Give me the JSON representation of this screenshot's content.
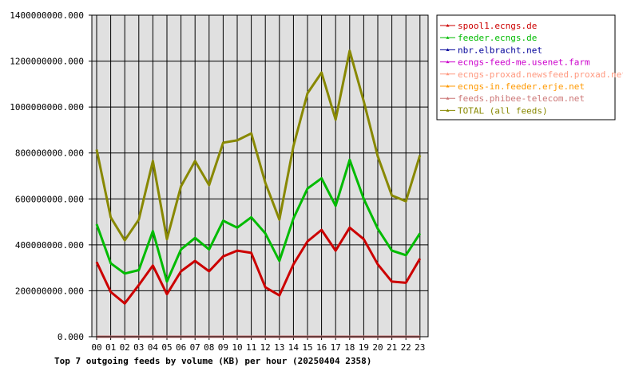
{
  "chart_data": {
    "type": "line",
    "title": "Top 7 outgoing feeds by volume (KB) per hour (20250404 2358)",
    "categories": [
      "00",
      "01",
      "02",
      "03",
      "04",
      "05",
      "06",
      "07",
      "08",
      "09",
      "10",
      "11",
      "12",
      "13",
      "14",
      "15",
      "16",
      "17",
      "18",
      "19",
      "20",
      "21",
      "22",
      "23"
    ],
    "ylim": [
      0,
      1400000000
    ],
    "yticks": [
      "0.000",
      "200000000.000",
      "400000000.000",
      "600000000.000",
      "800000000.000",
      "1000000000.000",
      "1200000000.000",
      "1400000000.000"
    ],
    "grid": true,
    "legend_position": "right",
    "series": [
      {
        "name": "spool1.ecngs.de",
        "color": "#cc0000",
        "values": [
          325000000,
          195000000,
          145000000,
          225000000,
          310000000,
          185000000,
          285000000,
          330000000,
          285000000,
          350000000,
          375000000,
          365000000,
          215000000,
          180000000,
          315000000,
          415000000,
          465000000,
          375000000,
          475000000,
          425000000,
          315000000,
          240000000,
          235000000,
          340000000
        ]
      },
      {
        "name": "feeder.ecngs.de",
        "color": "#00bb00",
        "values": [
          490000000,
          320000000,
          275000000,
          290000000,
          460000000,
          240000000,
          380000000,
          430000000,
          380000000,
          505000000,
          475000000,
          520000000,
          450000000,
          330000000,
          515000000,
          645000000,
          690000000,
          570000000,
          770000000,
          600000000,
          470000000,
          375000000,
          355000000,
          450000000
        ]
      },
      {
        "name": "nbr.elbracht.net",
        "color": "#000099",
        "values": [
          0,
          0,
          0,
          0,
          0,
          0,
          0,
          0,
          0,
          0,
          0,
          0,
          0,
          0,
          0,
          0,
          0,
          0,
          0,
          0,
          0,
          0,
          0,
          0
        ]
      },
      {
        "name": "ecngs-feed-me.usenet.farm",
        "color": "#cc00cc",
        "values": [
          0,
          0,
          0,
          0,
          0,
          0,
          0,
          0,
          0,
          0,
          0,
          0,
          0,
          0,
          0,
          0,
          0,
          0,
          0,
          0,
          0,
          0,
          0,
          0
        ]
      },
      {
        "name": "ecngs-proxad.newsfeed.proxad.net",
        "color": "#ff9980",
        "values": [
          0,
          0,
          0,
          0,
          0,
          0,
          0,
          0,
          0,
          0,
          0,
          0,
          0,
          0,
          0,
          0,
          0,
          0,
          0,
          0,
          0,
          0,
          0,
          0
        ]
      },
      {
        "name": "ecngs-in.feeder.erje.net",
        "color": "#ff9900",
        "values": [
          0,
          0,
          0,
          0,
          0,
          0,
          0,
          0,
          0,
          0,
          0,
          0,
          0,
          0,
          0,
          0,
          0,
          0,
          0,
          0,
          0,
          0,
          0,
          0
        ]
      },
      {
        "name": "feeds.phibee-telecom.net",
        "color": "#cc7777",
        "values": [
          0,
          0,
          0,
          0,
          0,
          0,
          0,
          0,
          0,
          0,
          0,
          0,
          0,
          0,
          0,
          0,
          0,
          0,
          0,
          0,
          0,
          0,
          0,
          0
        ]
      },
      {
        "name": "TOTAL (all feeds)",
        "color": "#888800",
        "values": [
          815000000,
          520000000,
          420000000,
          510000000,
          765000000,
          425000000,
          655000000,
          765000000,
          660000000,
          845000000,
          855000000,
          885000000,
          670000000,
          510000000,
          830000000,
          1060000000,
          1150000000,
          945000000,
          1245000000,
          1025000000,
          785000000,
          615000000,
          590000000,
          790000000
        ]
      }
    ]
  }
}
